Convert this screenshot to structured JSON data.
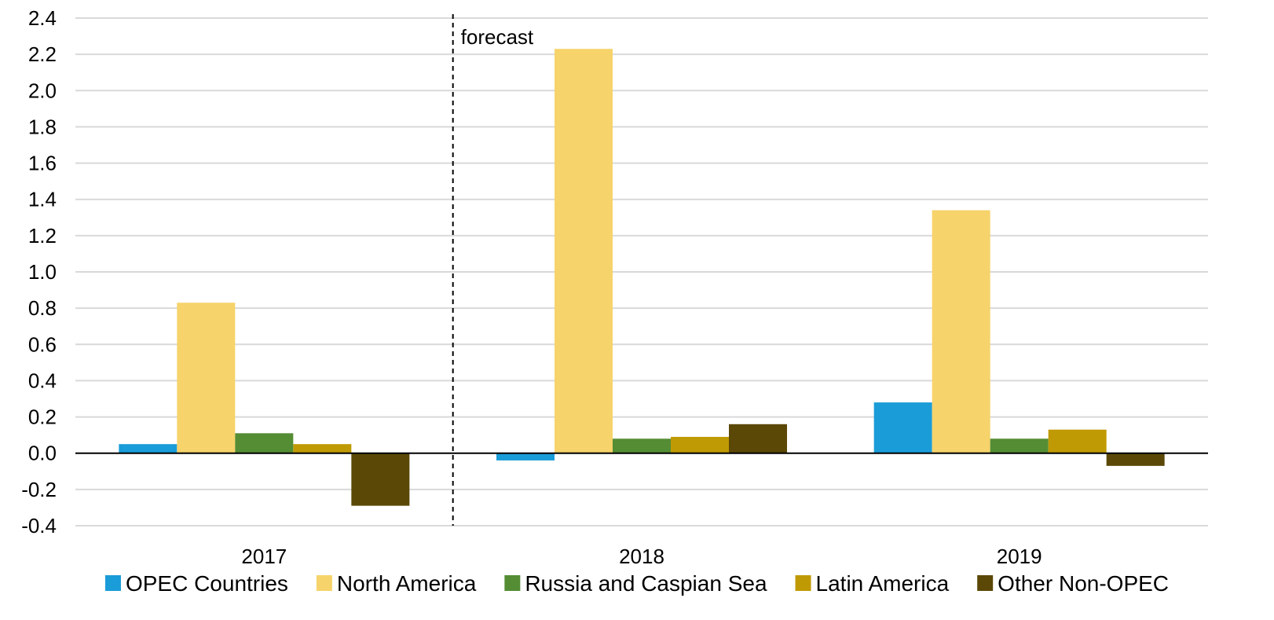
{
  "chart_data": {
    "type": "bar",
    "categories": [
      "2017",
      "2018",
      "2019"
    ],
    "series": [
      {
        "name": "OPEC Countries",
        "color": "#1a9cd8",
        "values": [
          0.05,
          -0.04,
          0.28
        ]
      },
      {
        "name": "North America",
        "color": "#f6d36b",
        "values": [
          0.83,
          2.23,
          1.34
        ]
      },
      {
        "name": "Russia and Caspian Sea",
        "color": "#548d34",
        "values": [
          0.11,
          0.08,
          0.08
        ]
      },
      {
        "name": "Latin America",
        "color": "#c09a04",
        "values": [
          0.05,
          0.09,
          0.13
        ]
      },
      {
        "name": "Other Non-OPEC",
        "color": "#5b4807",
        "values": [
          -0.29,
          0.16,
          -0.07
        ]
      }
    ],
    "ylim": [
      -0.4,
      2.4
    ],
    "yticks": [
      "-0.4",
      "-0.2",
      "0.0",
      "0.2",
      "0.4",
      "0.6",
      "0.8",
      "1.0",
      "1.2",
      "1.4",
      "1.6",
      "1.8",
      "2.0",
      "2.2",
      "2.4"
    ],
    "grid": true,
    "legend": "bottom",
    "annotations": [
      {
        "text": "forecast",
        "between_categories": [
          "2017",
          "2018"
        ],
        "style": "dashed-vertical-line"
      }
    ],
    "title": "",
    "xlabel": "",
    "ylabel": ""
  }
}
